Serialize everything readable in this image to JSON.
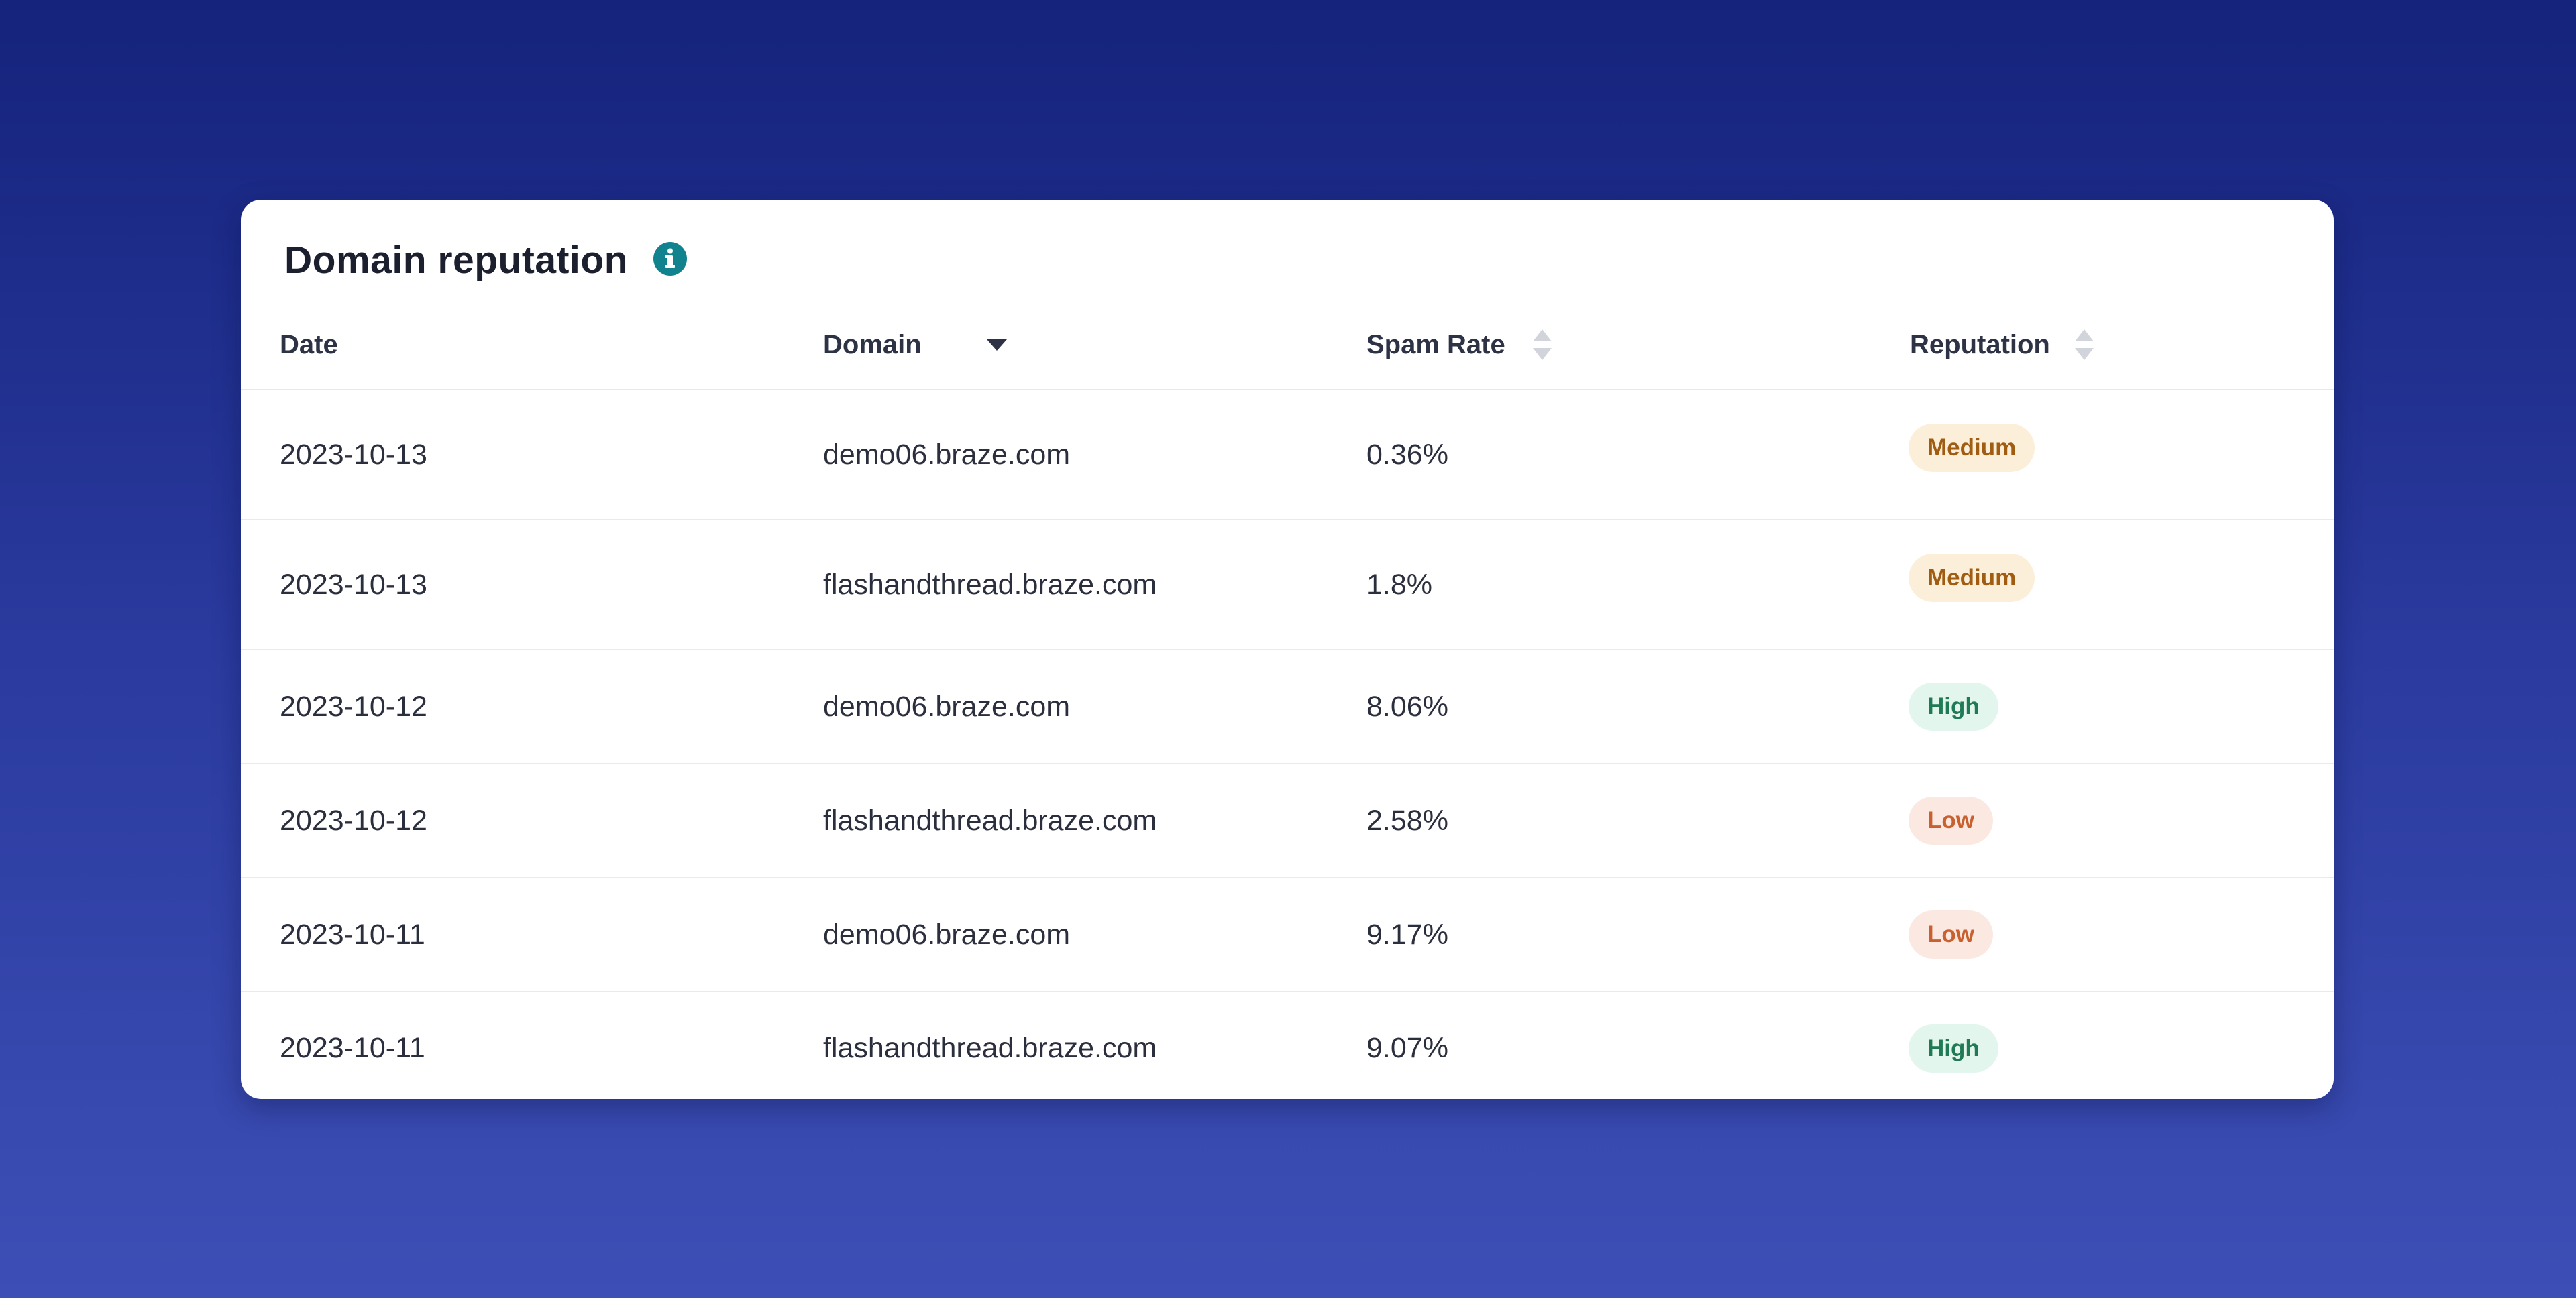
{
  "card": {
    "title": "Domain reputation"
  },
  "table": {
    "columns": [
      {
        "label": "Date",
        "sort": "descending"
      },
      {
        "label": "Domain",
        "sort": "unsorted"
      },
      {
        "label": "Spam Rate",
        "sort": "unsorted"
      },
      {
        "label": "Reputation",
        "sort": "none"
      }
    ],
    "rows": [
      {
        "date": "2023-10-13",
        "domain": "demo06.braze.com",
        "spam_rate": "0.36%",
        "reputation": "Medium"
      },
      {
        "date": "2023-10-13",
        "domain": "flashandthread.braze.com",
        "spam_rate": "1.8%",
        "reputation": "Medium"
      },
      {
        "date": "2023-10-12",
        "domain": "demo06.braze.com",
        "spam_rate": "8.06%",
        "reputation": "High"
      },
      {
        "date": "2023-10-12",
        "domain": "flashandthread.braze.com",
        "spam_rate": "2.58%",
        "reputation": "Low"
      },
      {
        "date": "2023-10-11",
        "domain": "demo06.braze.com",
        "spam_rate": "9.17%",
        "reputation": "Low"
      },
      {
        "date": "2023-10-11",
        "domain": "flashandthread.braze.com",
        "spam_rate": "9.07%",
        "reputation": "High"
      }
    ]
  },
  "icons": {
    "info": "info-icon",
    "sort_desc": "caret-down-icon",
    "sort_both": "sort-icon"
  },
  "colors": {
    "background_top": "#15237c",
    "background_bottom": "#3d4fb6",
    "info_icon": "#11838f",
    "medium_bg": "#fcefd9",
    "medium_text": "#a05d12",
    "high_bg": "#e2f6ee",
    "high_text": "#1f7a55",
    "low_bg": "#fbe9e1",
    "low_text": "#c9602f"
  }
}
